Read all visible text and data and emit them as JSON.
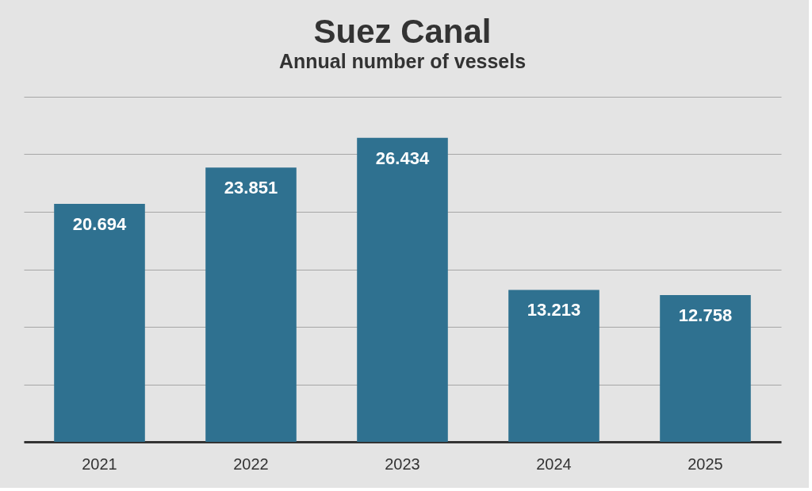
{
  "chart_data": {
    "type": "bar",
    "title": "Suez Canal",
    "subtitle": "Annual number of vessels",
    "categories": [
      "2021",
      "2022",
      "2023",
      "2024",
      "2025"
    ],
    "values": [
      20694,
      23851,
      26434,
      13213,
      12758
    ],
    "value_labels": [
      "20.694",
      "23.851",
      "26.434",
      "13.213",
      "12.758"
    ],
    "color": "#2f7190",
    "ylim": [
      0,
      30000
    ],
    "yticks": [
      {
        "value": 0,
        "label": null
      },
      {
        "value": 5000,
        "label": null
      },
      {
        "value": 10000,
        "label": null
      },
      {
        "value": 15000,
        "label": null
      },
      {
        "value": 20000,
        "label": null
      },
      {
        "value": 25000,
        "label": null
      },
      {
        "value": 30000,
        "label": null
      }
    ],
    "tick_labels": "x",
    "grid": "y"
  }
}
